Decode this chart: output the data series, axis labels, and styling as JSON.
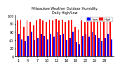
{
  "title": "Milwaukee Weather Outdoor Humidity",
  "subtitle": "Daily High/Low",
  "highs": [
    88,
    90,
    72,
    88,
    85,
    75,
    88,
    92,
    88,
    85,
    90,
    88,
    92,
    88,
    90,
    85,
    88,
    90,
    72,
    65,
    88,
    85,
    88,
    90,
    92,
    88,
    85,
    88,
    90,
    85
  ],
  "lows": [
    55,
    42,
    38,
    50,
    60,
    40,
    45,
    55,
    50,
    42,
    55,
    48,
    60,
    52,
    55,
    40,
    45,
    60,
    35,
    30,
    50,
    55,
    48,
    60,
    52,
    45,
    38,
    45,
    55,
    42
  ],
  "xlabels": [
    "1",
    "2",
    "3",
    "4",
    "5",
    "6",
    "7",
    "8",
    "9",
    "10",
    "11",
    "12",
    "13",
    "14",
    "15",
    "16",
    "17",
    "18",
    "19",
    "20",
    "21",
    "22",
    "23",
    "24",
    "25",
    "26",
    "27",
    "28",
    "29",
    "30"
  ],
  "high_color": "#ff0000",
  "low_color": "#0000ff",
  "bg_color": "#ffffff",
  "ylim": [
    0,
    100
  ],
  "yticks": [
    0,
    20,
    40,
    60,
    80,
    100
  ],
  "legend_high": "High",
  "legend_low": "Low",
  "dashed_index": 20
}
